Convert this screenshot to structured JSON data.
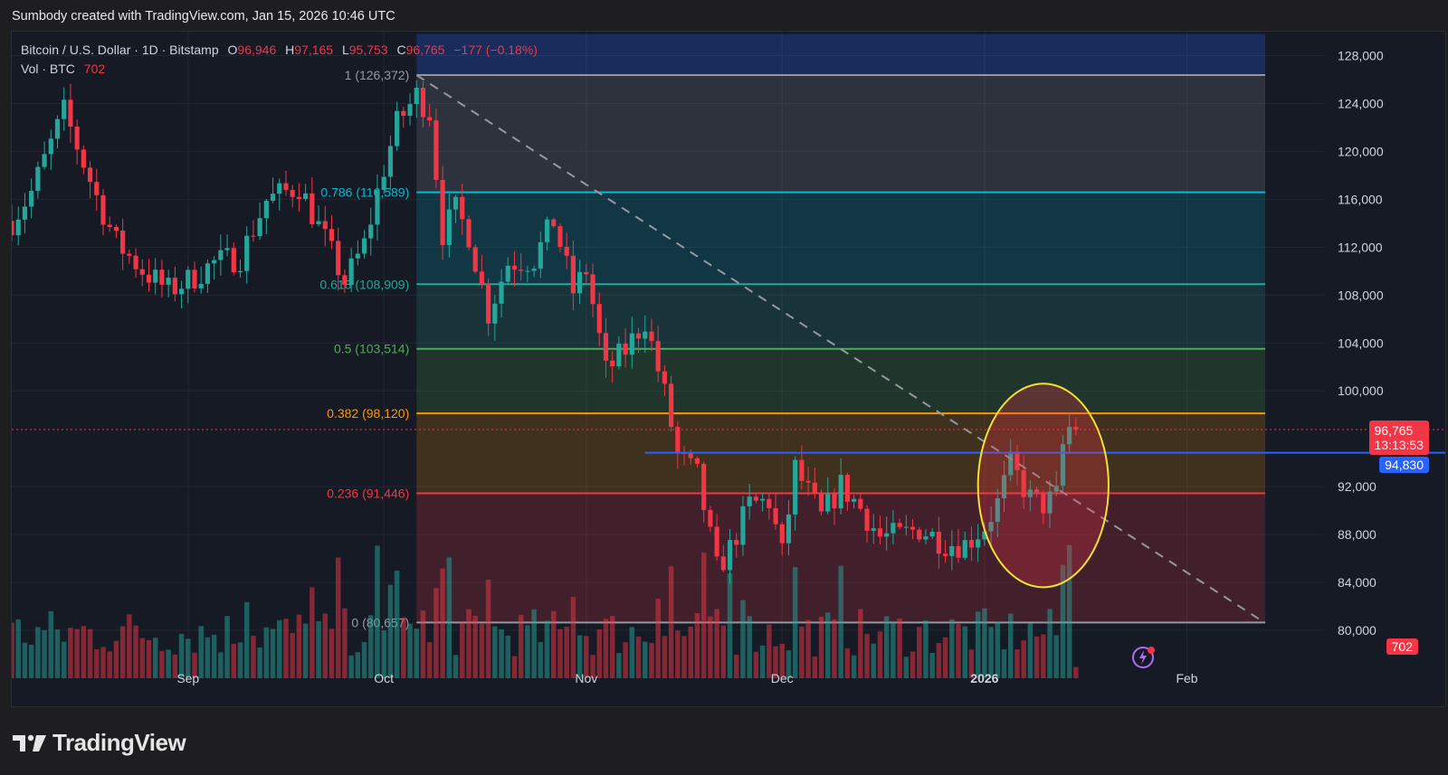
{
  "header": {
    "attribution": "Sumbody created with TradingView.com, Jan 15, 2026 10:46 UTC"
  },
  "legend": {
    "symbol": "Bitcoin / U.S. Dollar · 1D · Bitstamp",
    "open_label": "O",
    "open": "96,946",
    "high_label": "H",
    "high": "97,165",
    "low_label": "L",
    "low": "95,753",
    "close_label": "C",
    "close": "96,765",
    "change": "−177 (−0.18%)",
    "vol_label": "Vol · BTC",
    "vol": "702"
  },
  "price_tags": {
    "last_price": "96,765",
    "countdown": "13:13:53",
    "horizontal_line": "94,830",
    "volume": "702"
  },
  "logo": {
    "text": "TradingView"
  },
  "colors": {
    "up": "#26a69a",
    "down": "#f23645",
    "background": "#161a25",
    "blue_line": "#2962ff",
    "highlight_circle": "#f5e134"
  },
  "chart_data": {
    "type": "candlestick",
    "title": "Bitcoin / U.S. Dollar · 1D · Bitstamp",
    "ylim": [
      76000,
      130000
    ],
    "y_ticks": [
      "128,000",
      "124,000",
      "120,000",
      "116,000",
      "112,000",
      "108,000",
      "104,000",
      "100,000",
      "92,000",
      "88,000",
      "84,000",
      "80,000"
    ],
    "x_ticks": [
      {
        "label": "Sep",
        "date": "2025-09-01"
      },
      {
        "label": "Oct",
        "date": "2025-10-01"
      },
      {
        "label": "Nov",
        "date": "2025-11-01"
      },
      {
        "label": "Dec",
        "date": "2025-12-01"
      },
      {
        "label": "2026",
        "date": "2026-01-01"
      },
      {
        "label": "Feb",
        "date": "2026-02-01"
      }
    ],
    "x_range": [
      "2025-08-05",
      "2026-02-22"
    ],
    "closes": [
      {
        "date": "2025-08-05",
        "close": 114200
      },
      {
        "date": "2025-08-08",
        "close": 116600
      },
      {
        "date": "2025-08-13",
        "close": 123300
      },
      {
        "date": "2025-08-18",
        "close": 116200
      },
      {
        "date": "2025-08-21",
        "close": 112400
      },
      {
        "date": "2025-08-25",
        "close": 110100
      },
      {
        "date": "2025-08-29",
        "close": 108400
      },
      {
        "date": "2025-09-01",
        "close": 109200
      },
      {
        "date": "2025-09-05",
        "close": 110700
      },
      {
        "date": "2025-09-09",
        "close": 111200
      },
      {
        "date": "2025-09-13",
        "close": 115900
      },
      {
        "date": "2025-09-18",
        "close": 117100
      },
      {
        "date": "2025-09-22",
        "close": 112600
      },
      {
        "date": "2025-09-25",
        "close": 109100
      },
      {
        "date": "2025-09-28",
        "close": 112200
      },
      {
        "date": "2025-10-01",
        "close": 118600
      },
      {
        "date": "2025-10-03",
        "close": 122300
      },
      {
        "date": "2025-10-06",
        "close": 124700
      },
      {
        "date": "2025-10-08",
        "close": 123300
      },
      {
        "date": "2025-10-10",
        "close": 113200
      },
      {
        "date": "2025-10-12",
        "close": 115100
      },
      {
        "date": "2025-10-14",
        "close": 113100
      },
      {
        "date": "2025-10-17",
        "close": 106500
      },
      {
        "date": "2025-10-20",
        "close": 110700
      },
      {
        "date": "2025-10-24",
        "close": 111000
      },
      {
        "date": "2025-10-27",
        "close": 114200
      },
      {
        "date": "2025-10-30",
        "close": 108300
      },
      {
        "date": "2025-11-01",
        "close": 110100
      },
      {
        "date": "2025-11-04",
        "close": 101600
      },
      {
        "date": "2025-11-07",
        "close": 103400
      },
      {
        "date": "2025-11-10",
        "close": 105900
      },
      {
        "date": "2025-11-13",
        "close": 99700
      },
      {
        "date": "2025-11-15",
        "close": 94600
      },
      {
        "date": "2025-11-18",
        "close": 92900
      },
      {
        "date": "2025-11-21",
        "close": 85100
      },
      {
        "date": "2025-11-23",
        "close": 86800
      },
      {
        "date": "2025-11-26",
        "close": 90500
      },
      {
        "date": "2025-11-29",
        "close": 90800
      },
      {
        "date": "2025-12-01",
        "close": 86300
      },
      {
        "date": "2025-12-03",
        "close": 93500
      },
      {
        "date": "2025-12-07",
        "close": 89400
      },
      {
        "date": "2025-12-10",
        "close": 92100
      },
      {
        "date": "2025-12-13",
        "close": 90200
      },
      {
        "date": "2025-12-16",
        "close": 87800
      },
      {
        "date": "2025-12-19",
        "close": 87900
      },
      {
        "date": "2025-12-22",
        "close": 88500
      },
      {
        "date": "2025-12-26",
        "close": 87300
      },
      {
        "date": "2025-12-29",
        "close": 87200
      },
      {
        "date": "2026-01-01",
        "close": 88700
      },
      {
        "date": "2026-01-03",
        "close": 90600
      },
      {
        "date": "2026-01-05",
        "close": 93800
      },
      {
        "date": "2026-01-08",
        "close": 91000
      },
      {
        "date": "2026-01-10",
        "close": 90500
      },
      {
        "date": "2026-01-12",
        "close": 91200
      },
      {
        "date": "2026-01-13",
        "close": 95400
      },
      {
        "date": "2026-01-14",
        "close": 96900
      },
      {
        "date": "2026-01-15",
        "close": 96765
      }
    ],
    "volume_range": [
      0,
      100
    ],
    "fibonacci": [
      {
        "label": "1 (126,372)",
        "price": 126372,
        "color": "#9598a1",
        "fill": "rgba(120,123,134,0.25)"
      },
      {
        "label": "0.786 (116,589)",
        "price": 116589,
        "color": "#00bcd4",
        "fill": "rgba(0,188,212,0.18)"
      },
      {
        "label": "0.618 (108,909)",
        "price": 108909,
        "color": "#26a69a",
        "fill": "rgba(38,166,154,0.18)"
      },
      {
        "label": "0.5 (103,514)",
        "price": 103514,
        "color": "#4caf50",
        "fill": "rgba(76,175,80,0.18)"
      },
      {
        "label": "0.382 (98,120)",
        "price": 98120,
        "color": "#ff9800",
        "fill": "rgba(255,152,0,0.18)"
      },
      {
        "label": "0.236 (91,446)",
        "price": 91446,
        "color": "#f23645",
        "fill": "rgba(242,54,69,0.2)"
      },
      {
        "label": "0 (80,657)",
        "price": 80657,
        "color": "#9598a1",
        "fill": null
      }
    ],
    "fib_start_date": "2025-10-06",
    "fib_end_date": "2026-02-13",
    "top_band_price": 129800,
    "top_band_fill": "rgba(41,98,255,0.25)",
    "horizontal_line": {
      "price": 94830,
      "start_date": "2025-11-10",
      "color": "#2962ff"
    },
    "last_price": 96765,
    "trendline": {
      "from": {
        "date": "2025-10-06",
        "price": 126372
      },
      "to": {
        "date": "2026-02-12",
        "price": 80960
      }
    },
    "highlight": {
      "center_date": "2026-01-10",
      "center_price": 92100,
      "rx_days": 10,
      "ry_price": 8500
    }
  }
}
